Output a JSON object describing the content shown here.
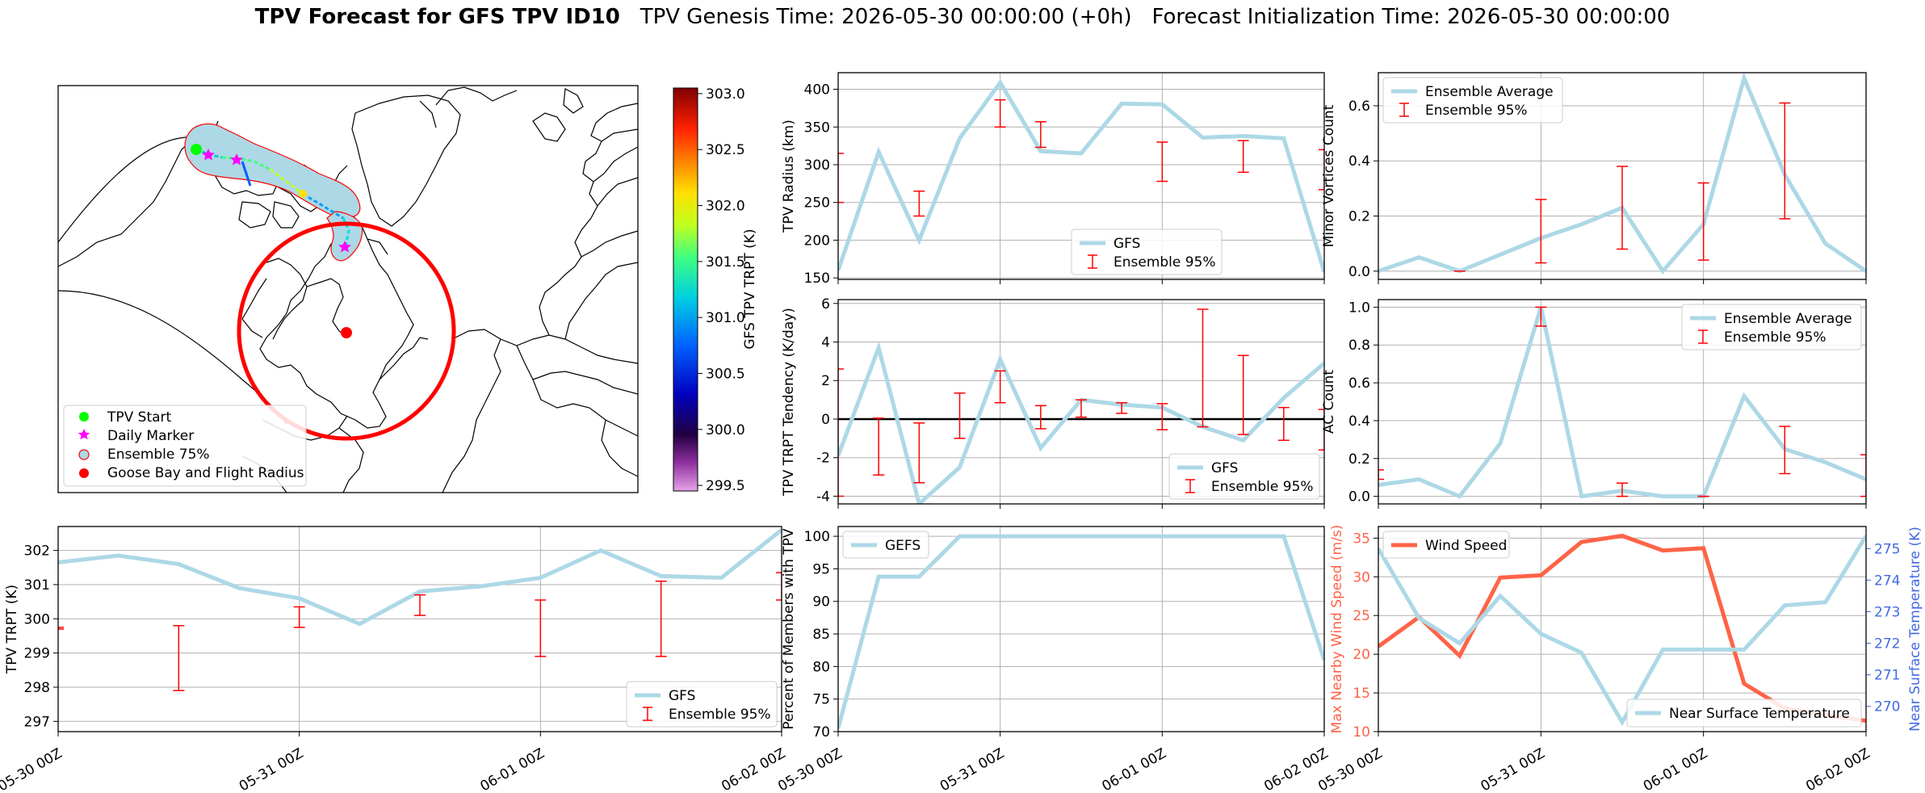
{
  "title": {
    "bold": "TPV Forecast for GFS TPV ID10",
    "rest": "TPV Genesis Time: 2026-05-30 00:00:00 (+0h)   Forecast Initialization Time: 2026-05-30 00:00:00"
  },
  "colors": {
    "series_line": "#add8e6",
    "error_bar": "#ff0000",
    "wind": "#ff6347",
    "temp_axis": "#4169e1",
    "zero_line": "#000000",
    "grid": "#b0b0b0"
  },
  "time_ticks": [
    "05-30 00Z",
    "05-31 00Z",
    "06-01 00Z",
    "06-02 00Z"
  ],
  "map": {
    "colorbar": {
      "label": "GFS TPV TRPT (K)",
      "ticks": [
        "303.0",
        "302.5",
        "302.0",
        "301.5",
        "301.0",
        "300.5",
        "300.0",
        "299.5"
      ]
    },
    "legend": [
      "TPV Start",
      "Daily Marker",
      "Ensemble 75%",
      "Goose Bay and Flight Radius"
    ],
    "icons": [
      "tpv-start-marker",
      "daily-marker-star",
      "ensemble-75-patch",
      "goose-bay-marker"
    ]
  },
  "chart_data": [
    {
      "id": "radius",
      "type": "line",
      "ylabel": "TPV Radius (km)",
      "ylim": [
        148,
        422
      ],
      "yticks": [
        150,
        200,
        250,
        300,
        350,
        400
      ],
      "x_hours": [
        0,
        6,
        12,
        18,
        24,
        30,
        36,
        42,
        48,
        54,
        60,
        66,
        72
      ],
      "series": [
        {
          "name": "GFS",
          "values": [
            160,
            317,
            200,
            335,
            409,
            318,
            315,
            381,
            380,
            336,
            338,
            335,
            158
          ]
        }
      ],
      "errorbars": [
        {
          "x": 0,
          "lo": 250,
          "hi": 315
        },
        {
          "x": 12,
          "lo": 232,
          "hi": 265
        },
        {
          "x": 24,
          "lo": 350,
          "hi": 386
        },
        {
          "x": 30,
          "lo": 323,
          "hi": 357
        },
        {
          "x": 48,
          "lo": 278,
          "hi": 330
        },
        {
          "x": 60,
          "lo": 290,
          "hi": 332
        },
        {
          "x": 72,
          "lo": 267,
          "hi": 320
        }
      ],
      "legend": [
        "GFS",
        "Ensemble 95%"
      ],
      "legend_pos": "lower-center"
    },
    {
      "id": "tendency",
      "type": "line",
      "ylabel": "TPV TRPT Tendency (K/day)",
      "ylim": [
        -4.4,
        6.2
      ],
      "yticks": [
        -4,
        -2,
        0,
        2,
        4,
        6
      ],
      "x_hours": [
        0,
        6,
        12,
        18,
        24,
        30,
        36,
        42,
        48,
        54,
        60,
        66,
        72
      ],
      "series": [
        {
          "name": "GFS",
          "values": [
            -1.9,
            3.7,
            -4.4,
            -2.5,
            3.1,
            -1.5,
            1.0,
            0.75,
            0.6,
            -0.4,
            -1.1,
            1.1,
            2.9
          ]
        }
      ],
      "errorbars": [
        {
          "x": 0,
          "lo": -4.0,
          "hi": 2.6
        },
        {
          "x": 6,
          "lo": -2.9,
          "hi": 0.05
        },
        {
          "x": 12,
          "lo": -3.3,
          "hi": -0.2
        },
        {
          "x": 18,
          "lo": -1.0,
          "hi": 1.35
        },
        {
          "x": 24,
          "lo": 0.85,
          "hi": 2.5
        },
        {
          "x": 30,
          "lo": -0.5,
          "hi": 0.7
        },
        {
          "x": 36,
          "lo": 0.1,
          "hi": 1.0
        },
        {
          "x": 42,
          "lo": 0.3,
          "hi": 0.85
        },
        {
          "x": 48,
          "lo": -0.55,
          "hi": 0.8
        },
        {
          "x": 54,
          "lo": -0.4,
          "hi": 5.7
        },
        {
          "x": 60,
          "lo": -0.8,
          "hi": 3.3
        },
        {
          "x": 66,
          "lo": -1.1,
          "hi": 0.6
        },
        {
          "x": 72,
          "lo": -1.6,
          "hi": 0.5
        }
      ],
      "hline": 0,
      "legend": [
        "GFS",
        "Ensemble 95%"
      ],
      "legend_pos": "lower-right"
    },
    {
      "id": "trpt",
      "type": "line",
      "ylabel": "TPV TRPT (K)",
      "ylim": [
        296.7,
        302.7
      ],
      "yticks": [
        297,
        298,
        299,
        300,
        301,
        302
      ],
      "x_hours": [
        0,
        6,
        12,
        18,
        24,
        30,
        36,
        42,
        48,
        54,
        60,
        66,
        72
      ],
      "series": [
        {
          "name": "GFS",
          "values": [
            301.65,
            301.85,
            301.6,
            300.9,
            300.6,
            299.85,
            300.8,
            300.95,
            301.2,
            302.0,
            301.25,
            301.2,
            302.6
          ]
        }
      ],
      "errorbars": [
        {
          "x": 0,
          "lo": 299.7,
          "hi": 299.75
        },
        {
          "x": 12,
          "lo": 297.9,
          "hi": 299.8
        },
        {
          "x": 24,
          "lo": 299.75,
          "hi": 300.35
        },
        {
          "x": 36,
          "lo": 300.1,
          "hi": 300.7
        },
        {
          "x": 48,
          "lo": 298.9,
          "hi": 300.55
        },
        {
          "x": 60,
          "lo": 298.9,
          "hi": 301.1
        },
        {
          "x": 72,
          "lo": 300.55,
          "hi": 301.35
        }
      ],
      "legend": [
        "GFS",
        "Ensemble 95%"
      ],
      "legend_pos": "lower-right"
    },
    {
      "id": "minor",
      "type": "line",
      "ylabel": "Minor Vortices Count",
      "ylim": [
        -0.03,
        0.72
      ],
      "yticks": [
        0.0,
        0.2,
        0.4,
        0.6
      ],
      "x_hours": [
        0,
        6,
        12,
        18,
        24,
        30,
        36,
        42,
        48,
        54,
        60,
        66,
        72
      ],
      "series": [
        {
          "name": "Ensemble Average",
          "values": [
            0.0,
            0.05,
            0.0,
            0.06,
            0.12,
            0.17,
            0.23,
            0.0,
            0.17,
            0.7,
            0.35,
            0.1,
            0.0
          ]
        }
      ],
      "errorbars": [
        {
          "x": 12,
          "lo": 0.0,
          "hi": 0.0
        },
        {
          "x": 24,
          "lo": 0.03,
          "hi": 0.26
        },
        {
          "x": 36,
          "lo": 0.08,
          "hi": 0.38
        },
        {
          "x": 48,
          "lo": 0.04,
          "hi": 0.32
        },
        {
          "x": 60,
          "lo": 0.19,
          "hi": 0.61
        }
      ],
      "legend": [
        "Ensemble Average",
        "Ensemble 95%"
      ],
      "legend_pos": "top-left"
    },
    {
      "id": "ac",
      "type": "line",
      "ylabel": "AC Count",
      "ylim": [
        -0.04,
        1.04
      ],
      "yticks": [
        0.0,
        0.2,
        0.4,
        0.6,
        0.8,
        1.0
      ],
      "x_hours": [
        0,
        6,
        12,
        18,
        24,
        30,
        36,
        42,
        48,
        54,
        60,
        66,
        72
      ],
      "series": [
        {
          "name": "Ensemble Average",
          "values": [
            0.06,
            0.09,
            0.0,
            0.28,
            1.0,
            0.0,
            0.03,
            0.0,
            0.0,
            0.53,
            0.25,
            0.18,
            0.09
          ]
        }
      ],
      "errorbars": [
        {
          "x": 0,
          "lo": 0.09,
          "hi": 0.14
        },
        {
          "x": 24,
          "lo": 0.9,
          "hi": 1.0
        },
        {
          "x": 36,
          "lo": 0.0,
          "hi": 0.07
        },
        {
          "x": 48,
          "lo": 0.0,
          "hi": 0.0
        },
        {
          "x": 60,
          "lo": 0.12,
          "hi": 0.37
        },
        {
          "x": 72,
          "lo": 0.0,
          "hi": 0.22
        }
      ],
      "legend": [
        "Ensemble Average",
        "Ensemble 95%"
      ],
      "legend_pos": "top-right"
    },
    {
      "id": "members",
      "type": "line",
      "ylabel": "Percent of Members with TPV",
      "ylim": [
        70,
        101.5
      ],
      "yticks": [
        70,
        75,
        80,
        85,
        90,
        95,
        100
      ],
      "x_hours": [
        0,
        6,
        12,
        18,
        24,
        30,
        36,
        42,
        48,
        54,
        60,
        66,
        72
      ],
      "series": [
        {
          "name": "GEFS",
          "values": [
            70.5,
            93.8,
            93.8,
            100,
            100,
            100,
            100,
            100,
            100,
            100,
            100,
            100,
            81
          ]
        }
      ],
      "legend": [
        "GEFS"
      ],
      "legend_pos": "top-left"
    },
    {
      "id": "wind",
      "type": "line",
      "ylabel": "Max Nearby Wind Speed (m/s)",
      "ylabel_right": "Near Surface Temperature (K)",
      "ylim": [
        10,
        36.5
      ],
      "yticks": [
        10,
        15,
        20,
        25,
        30,
        35
      ],
      "ylim_right": [
        269.2,
        275.7
      ],
      "yticks_right": [
        270,
        271,
        272,
        273,
        274,
        275
      ],
      "x_hours": [
        0,
        6,
        12,
        18,
        24,
        30,
        36,
        42,
        48,
        54,
        60,
        66,
        72
      ],
      "series": [
        {
          "name": "Wind Speed",
          "axis": "left",
          "values": [
            21.0,
            24.8,
            19.8,
            29.9,
            30.2,
            34.5,
            35.3,
            33.4,
            33.7,
            16.2,
            13.0,
            12.1,
            11.4
          ]
        },
        {
          "name": "Near Surface Temperature",
          "axis": "right",
          "values": [
            275.0,
            272.8,
            272.0,
            273.5,
            272.3,
            271.7,
            269.5,
            271.8,
            271.8,
            271.8,
            273.2,
            273.3,
            275.4
          ]
        }
      ],
      "legend": [
        "Wind Speed",
        "Near Surface Temperature"
      ],
      "legend_pos": "top-left / bottom-right"
    }
  ]
}
